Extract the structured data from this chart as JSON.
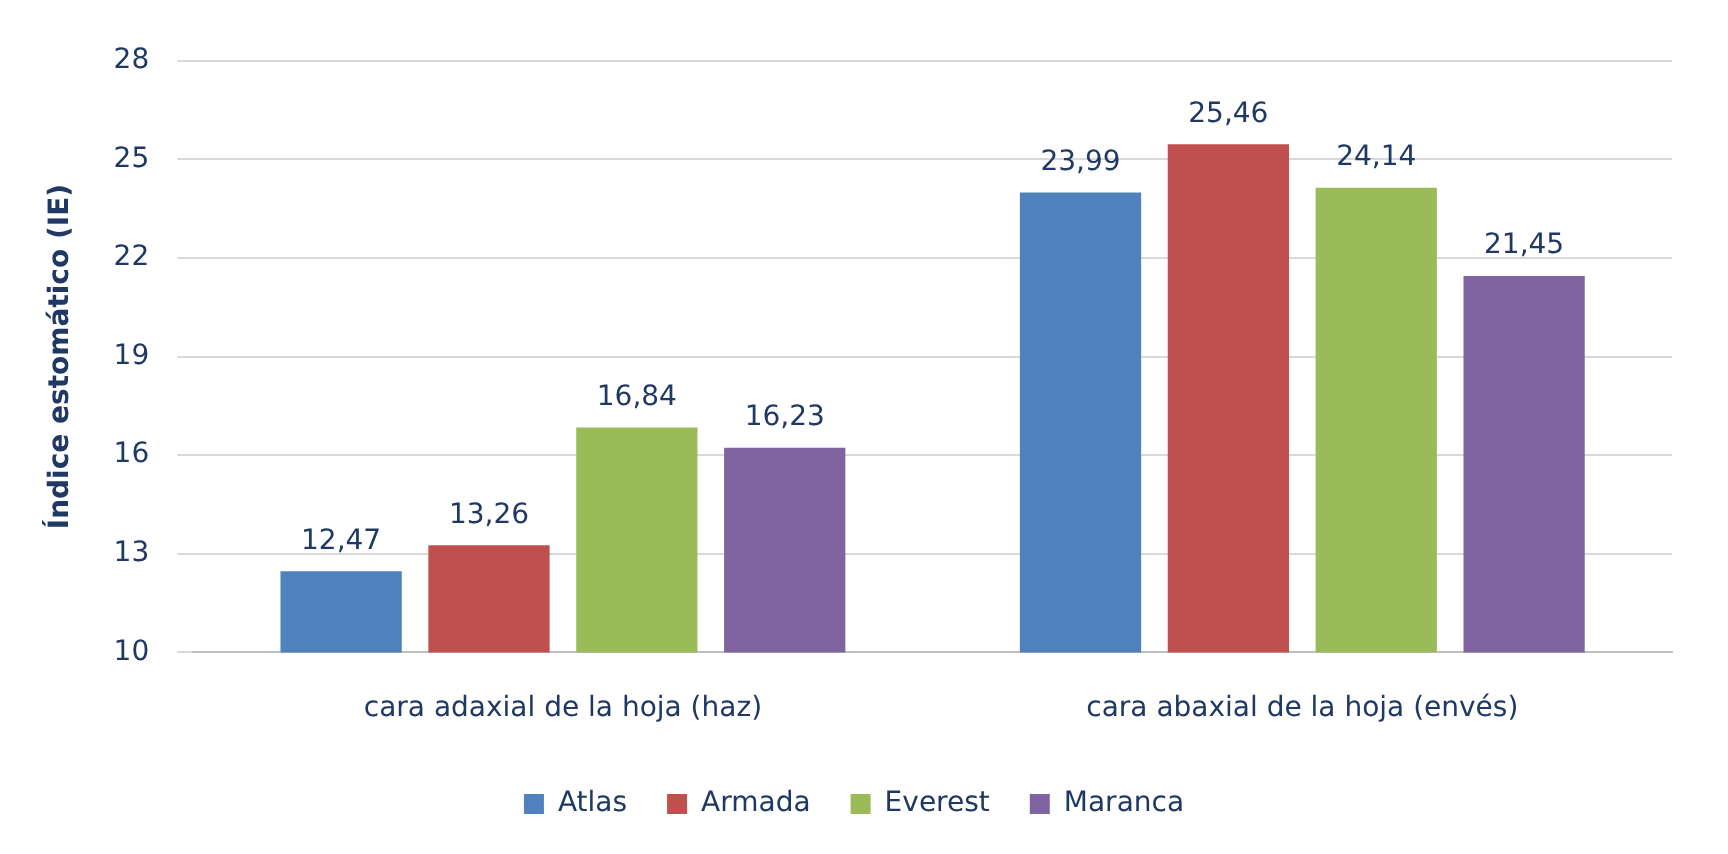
{
  "chart_data": {
    "type": "bar",
    "ylabel": "Índice estomático (IE)",
    "categories": [
      "cara adaxial de la hoja (haz)",
      "cara abaxial de la hoja (envés)"
    ],
    "series": [
      {
        "name": "Atlas",
        "color": "#4f81bd",
        "values": [
          12.47,
          23.99
        ],
        "value_labels": [
          "12,47",
          "23,99"
        ]
      },
      {
        "name": "Armada",
        "color": "#c0504d",
        "values": [
          13.26,
          25.46
        ],
        "value_labels": [
          "13,26",
          "25,46"
        ]
      },
      {
        "name": "Everest",
        "color": "#9bbb59",
        "values": [
          16.84,
          24.14
        ],
        "value_labels": [
          "16,84",
          "24,14"
        ]
      },
      {
        "name": "Maranca",
        "color": "#8064a2",
        "values": [
          16.23,
          21.45
        ],
        "value_labels": [
          "16,23",
          "21,45"
        ]
      }
    ],
    "ylim": [
      10,
      28
    ],
    "yticks": [
      10,
      13,
      16,
      19,
      22,
      25,
      28
    ],
    "grid": "y",
    "legend": "bottom"
  }
}
